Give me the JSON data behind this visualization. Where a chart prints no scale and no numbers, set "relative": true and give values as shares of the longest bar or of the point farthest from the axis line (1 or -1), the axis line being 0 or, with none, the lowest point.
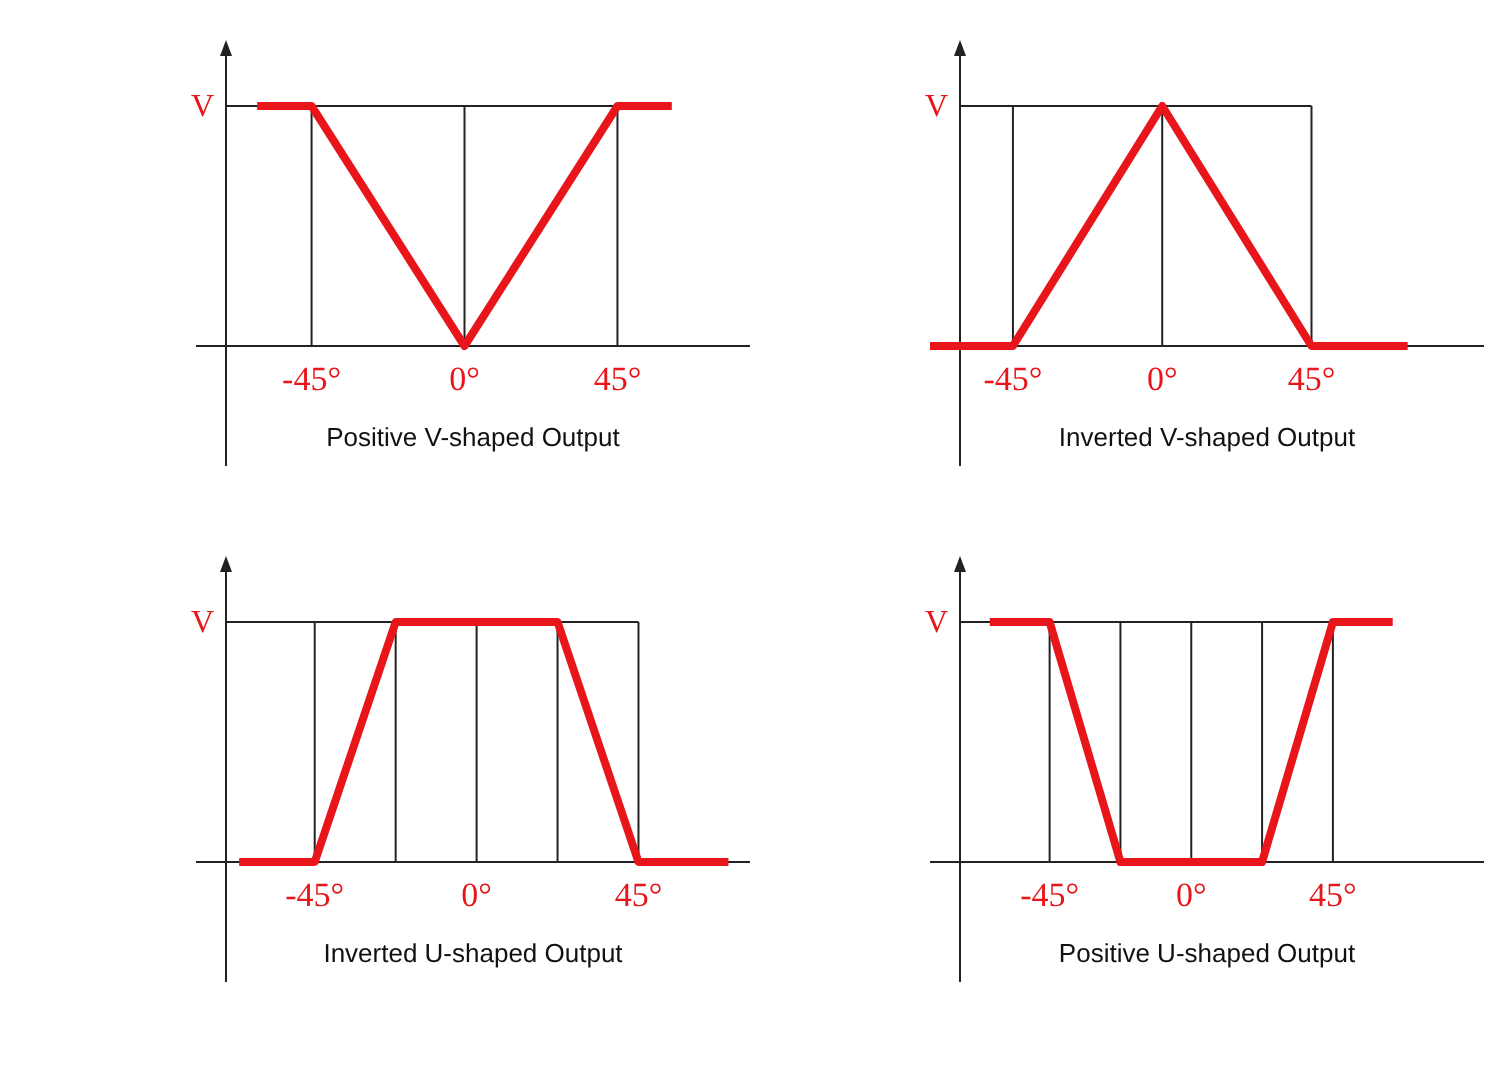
{
  "chart_data": [
    {
      "type": "line",
      "title": "Positive V-shaped Output",
      "relative": true,
      "xlim": [
        -79,
        84
      ],
      "xticks": [
        {
          "value": -45,
          "label": "-45°"
        },
        {
          "value": 0,
          "label": "0°"
        },
        {
          "value": 45,
          "label": "45°"
        }
      ],
      "grid": "x",
      "annotations": [
        "V"
      ],
      "marker": "none",
      "line_style": "solid",
      "series": [
        {
          "color": "#e8161b",
          "x": [
            -61,
            -45,
            0,
            45,
            61
          ],
          "values": [
            1,
            1,
            0,
            1,
            1
          ]
        }
      ]
    },
    {
      "type": "line",
      "title": "Inverted V-shaped Output",
      "relative": true,
      "xlim": [
        -70,
        97
      ],
      "xticks": [
        {
          "value": -45,
          "label": "-45°"
        },
        {
          "value": 0,
          "label": "0°"
        },
        {
          "value": 45,
          "label": "45°"
        }
      ],
      "grid": "x",
      "annotations": [
        "V"
      ],
      "marker": "none",
      "line_style": "solid",
      "series": [
        {
          "color": "#e8161b",
          "x": [
            -70,
            -45,
            0,
            45,
            74
          ],
          "values": [
            0,
            0,
            1,
            0,
            0
          ]
        }
      ]
    },
    {
      "type": "line",
      "title": "Inverted U-shaped Output",
      "relative": true,
      "xlim": [
        -78,
        76
      ],
      "xticks": [
        {
          "value": -45,
          "label": "-45°"
        },
        {
          "value": -22.5,
          "label": null
        },
        {
          "value": 0,
          "label": "0°"
        },
        {
          "value": 22.5,
          "label": null
        },
        {
          "value": 45,
          "label": "45°"
        }
      ],
      "grid": "x",
      "annotations": [
        "V"
      ],
      "marker": "none",
      "line_style": "solid",
      "series": [
        {
          "color": "#e8161b",
          "x": [
            -66,
            -45,
            -22.5,
            22.5,
            45,
            70
          ],
          "values": [
            0,
            0,
            1,
            1,
            0,
            0
          ]
        }
      ]
    },
    {
      "type": "line",
      "title": "Positive U-shaped Output",
      "relative": true,
      "xlim": [
        -83,
        93
      ],
      "xticks": [
        {
          "value": -45,
          "label": "-45°"
        },
        {
          "value": -22.5,
          "label": null
        },
        {
          "value": 0,
          "label": "0°"
        },
        {
          "value": 22.5,
          "label": null
        },
        {
          "value": 45,
          "label": "45°"
        }
      ],
      "grid": "x",
      "annotations": [
        "V"
      ],
      "marker": "none",
      "line_style": "solid",
      "series": [
        {
          "color": "#e8161b",
          "x": [
            -64,
            -45,
            -22.5,
            22.5,
            45,
            64
          ],
          "values": [
            1,
            1,
            0,
            0,
            1,
            1
          ]
        }
      ]
    }
  ]
}
